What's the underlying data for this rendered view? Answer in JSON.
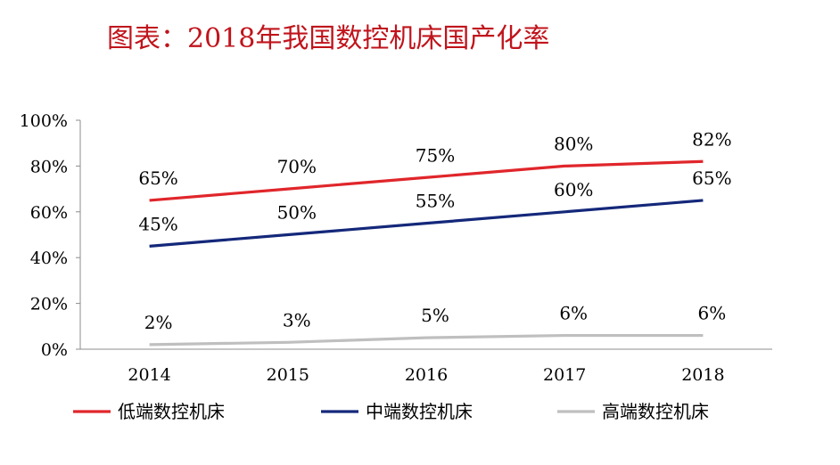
{
  "chart_data": {
    "type": "line",
    "title": "图表：2018年我国数控机床国产化率",
    "categories": [
      "2014",
      "2015",
      "2016",
      "2017",
      "2018"
    ],
    "series": [
      {
        "name": "低端数控机床",
        "values": [
          65,
          70,
          75,
          80,
          82
        ],
        "labels": [
          "65%",
          "70%",
          "75%",
          "80%",
          "82%"
        ],
        "color": "#e0262b"
      },
      {
        "name": "中端数控机床",
        "values": [
          45,
          50,
          55,
          60,
          65
        ],
        "labels": [
          "45%",
          "50%",
          "55%",
          "60%",
          "65%"
        ],
        "color": "#14287a"
      },
      {
        "name": "高端数控机床",
        "values": [
          2,
          3,
          5,
          6,
          6
        ],
        "labels": [
          "2%",
          "3%",
          "5%",
          "6%",
          "6%"
        ],
        "color": "#bfbfbf"
      }
    ],
    "y_ticks": [
      "0%",
      "20%",
      "40%",
      "60%",
      "80%",
      "100%"
    ],
    "ylim": [
      0,
      100
    ],
    "xlabel": "",
    "ylabel": "",
    "grid": false,
    "legend": "bottom"
  }
}
